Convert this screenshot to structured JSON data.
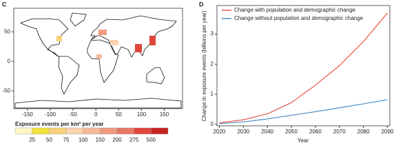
{
  "chart_data": [
    {
      "type": "map",
      "panel_label": "C",
      "xlim": [
        -180,
        190
      ],
      "ylim": [
        -80,
        90
      ],
      "xticks": [
        -150,
        -100,
        -50,
        0,
        50,
        100,
        150
      ],
      "yticks": [
        -50,
        0,
        50
      ],
      "colorbar": {
        "title": "Exposure events per km² per year",
        "ticks": [
          25,
          50,
          75,
          100,
          150,
          200,
          275,
          500
        ],
        "colors": [
          "#fff6c8",
          "#f3e23c",
          "#f7d27a",
          "#fbd3b0",
          "#f6b89b",
          "#f09a80",
          "#e97766",
          "#e0473d",
          "#c8241f"
        ]
      }
    },
    {
      "type": "line",
      "panel_label": "D",
      "x": [
        2020,
        2030,
        2040,
        2050,
        2060,
        2070,
        2080,
        2090
      ],
      "series": [
        {
          "name": "Change with population and demographic change",
          "color": "#e8574a",
          "values": [
            0.05,
            0.15,
            0.35,
            0.72,
            1.3,
            1.95,
            2.75,
            3.7
          ]
        },
        {
          "name": "Change without population and demographic change",
          "color": "#4a8cc4",
          "values": [
            0.02,
            0.08,
            0.18,
            0.3,
            0.42,
            0.55,
            0.68,
            0.82
          ]
        }
      ],
      "xlim": [
        2019,
        2091
      ],
      "ylim": [
        -0.05,
        3.95
      ],
      "xticks": [
        2020,
        2030,
        2040,
        2050,
        2060,
        2070,
        2080,
        2090
      ],
      "yticks": [
        0,
        1,
        2,
        3
      ],
      "xlabel": "Year",
      "ylabel": "Change in exposure events (billions per year)",
      "legend": "upper left"
    }
  ]
}
